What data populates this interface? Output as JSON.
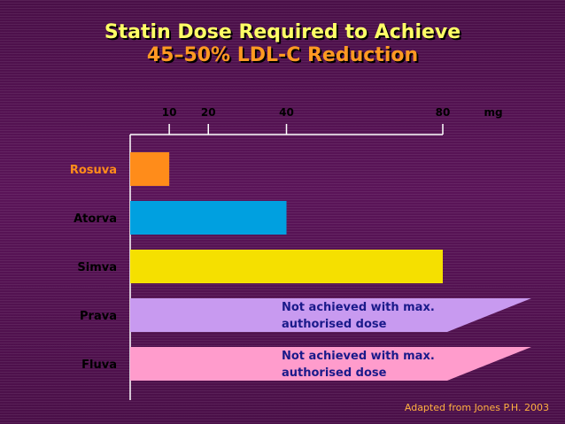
{
  "title_line1": "Statin Dose Required to Achieve",
  "title_line2": "45–50% LDL-C Reduction",
  "source": "Adapted from Jones P.H. 2003",
  "chart_data": {
    "type": "bar",
    "orientation": "horizontal",
    "unit_label": "mg",
    "ticks": [
      10,
      20,
      40,
      80
    ],
    "xlim": [
      0,
      81
    ],
    "categories": [
      "Rosuva",
      "Atorva",
      "Simva",
      "Prava",
      "Fluva"
    ],
    "values": [
      10,
      40,
      80,
      null,
      null
    ],
    "notes": [
      null,
      null,
      null,
      "Not achieved with max. authorised dose",
      "Not achieved with max. authorised dose"
    ],
    "note_lines": [
      null,
      null,
      null,
      [
        "Not achieved with max.",
        "authorised dose"
      ],
      [
        "Not achieved with max.",
        "authorised dose"
      ]
    ],
    "colors": [
      "#ff8c1a",
      "#00a0e0",
      "#f5e000",
      "#c89af0",
      "#ff9ccc"
    ],
    "label_colors": [
      "#ff8c1a",
      "#000000",
      "#000000",
      "#000000",
      "#000000"
    ]
  }
}
